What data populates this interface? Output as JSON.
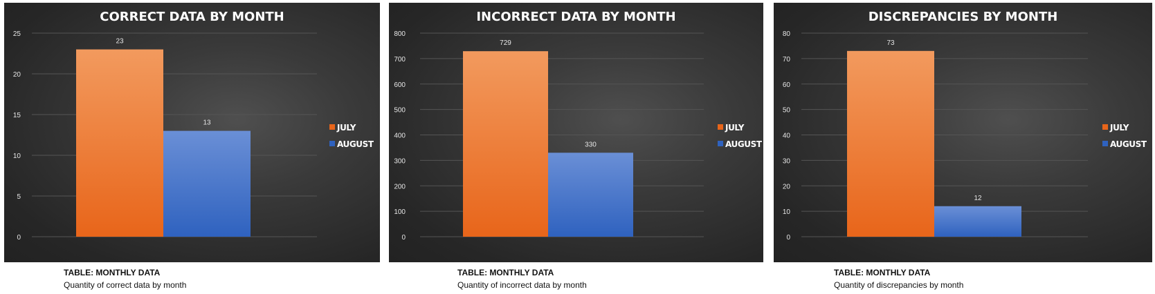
{
  "colors": {
    "july_top": "#f29a5e",
    "july_bottom": "#e8651a",
    "august_top": "#6a8fd6",
    "august_bottom": "#2f62bf",
    "text": "#ffffff",
    "axis_text": "#e6e6e6",
    "grid": "#555555"
  },
  "chart_data": [
    {
      "type": "bar",
      "title": "CORRECT DATA BY MONTH",
      "categories": [
        ""
      ],
      "series": [
        {
          "name": "JULY",
          "values": [
            23
          ]
        },
        {
          "name": "AUGUST",
          "values": [
            13
          ]
        }
      ],
      "data_labels": [
        "23",
        "13"
      ],
      "ylim": [
        0,
        25
      ],
      "yticks": [
        "0",
        "5",
        "10",
        "15",
        "20",
        "25"
      ],
      "ytick_values": [
        0,
        5,
        10,
        15,
        20,
        25
      ],
      "grid": true,
      "legend": "right",
      "caption_title": "TABLE: MONTHLY DATA",
      "caption_subtitle": "Quantity of correct data by month"
    },
    {
      "type": "bar",
      "title": "INCORRECT DATA BY MONTH",
      "categories": [
        ""
      ],
      "series": [
        {
          "name": "JULY",
          "values": [
            729
          ]
        },
        {
          "name": "AUGUST",
          "values": [
            330
          ]
        }
      ],
      "data_labels": [
        "729",
        "330"
      ],
      "ylim": [
        0,
        800
      ],
      "yticks": [
        "0",
        "100",
        "200",
        "300",
        "400",
        "500",
        "600",
        "700",
        "800"
      ],
      "ytick_values": [
        0,
        100,
        200,
        300,
        400,
        500,
        600,
        700,
        800
      ],
      "grid": true,
      "legend": "right",
      "caption_title": "TABLE: MONTHLY DATA",
      "caption_subtitle": "Quantity of incorrect data by month"
    },
    {
      "type": "bar",
      "title": "DISCREPANCIES BY MONTH",
      "categories": [
        ""
      ],
      "series": [
        {
          "name": "JULY",
          "values": [
            73
          ]
        },
        {
          "name": "AUGUST",
          "values": [
            12
          ]
        }
      ],
      "data_labels": [
        "73",
        "12"
      ],
      "ylim": [
        0,
        80
      ],
      "yticks": [
        "0",
        "10",
        "20",
        "30",
        "40",
        "50",
        "60",
        "70",
        "80"
      ],
      "ytick_values": [
        0,
        10,
        20,
        30,
        40,
        50,
        60,
        70,
        80
      ],
      "grid": true,
      "legend": "right",
      "caption_title": "TABLE: MONTHLY DATA",
      "caption_subtitle": "Quantity of discrepancies by month"
    }
  ]
}
